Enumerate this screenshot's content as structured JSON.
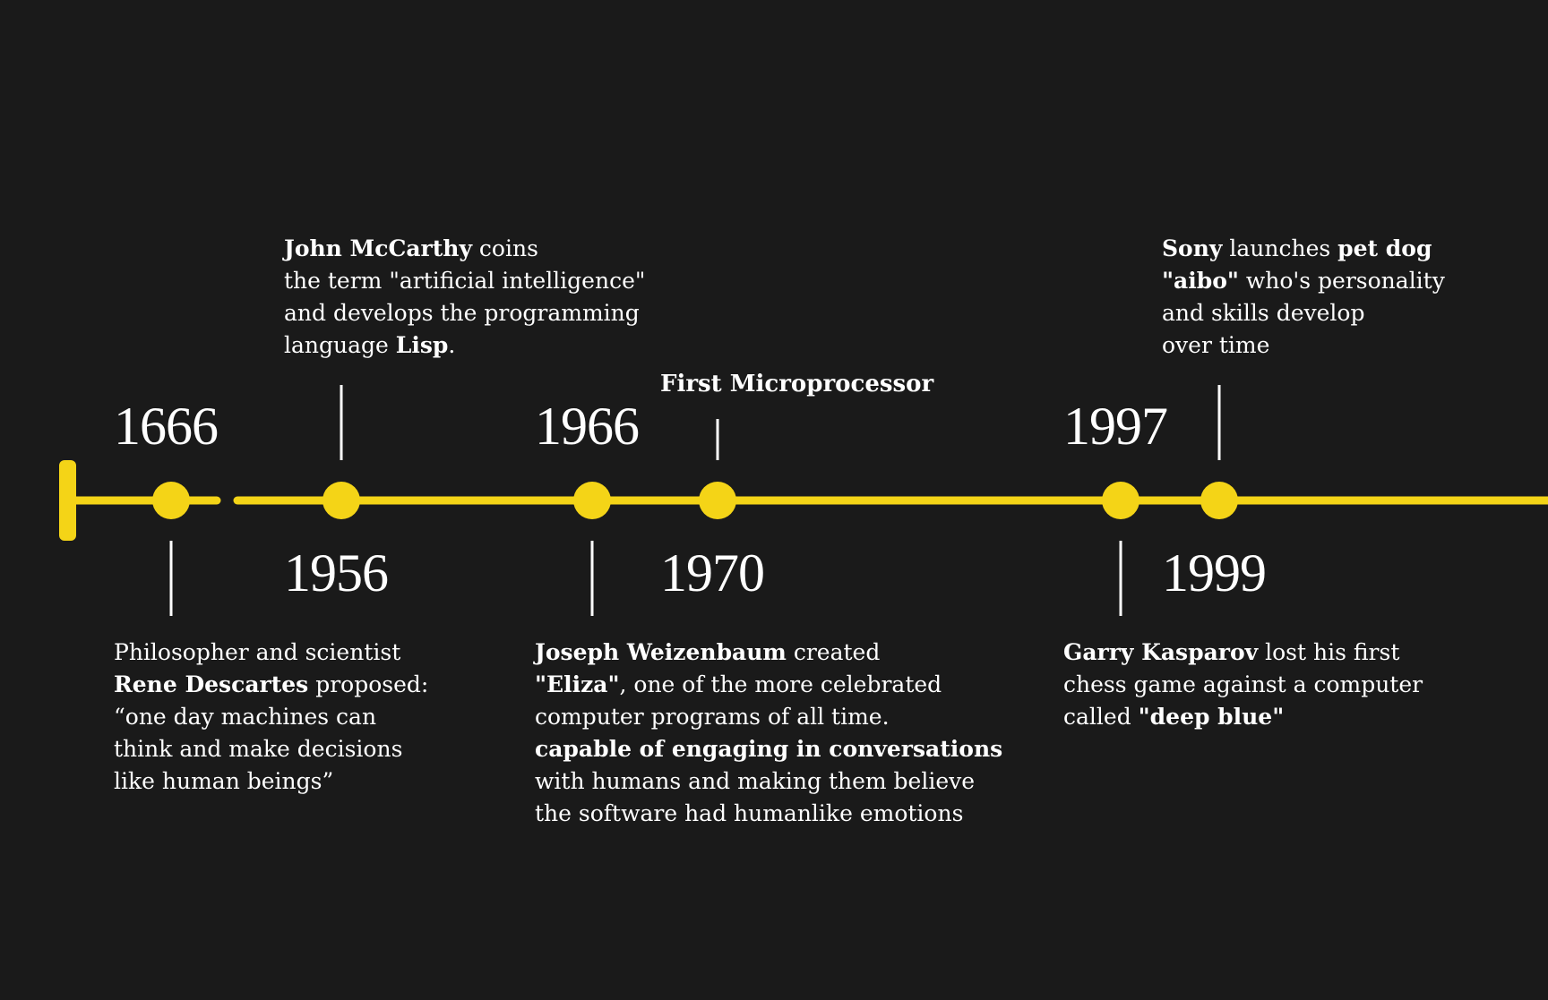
{
  "theme": {
    "background": "#1a1a1a",
    "accent": "#f4d417",
    "text": "#ffffff",
    "connector": "#ffffff"
  },
  "events": [
    {
      "id": "1666",
      "year": "1666",
      "lines": [
        [
          {
            "text": "Philosopher and scientist",
            "bold": false
          }
        ],
        [
          {
            "text": "Rene Descartes",
            "bold": true
          },
          {
            "text": " proposed:",
            "bold": false
          }
        ],
        [
          {
            "text": "“one day machines can",
            "bold": false
          }
        ],
        [
          {
            "text": "think and make decisions",
            "bold": false
          }
        ],
        [
          {
            "text": "like human beings”",
            "bold": false
          }
        ]
      ]
    },
    {
      "id": "1956",
      "year": "1956",
      "lines": [
        [
          {
            "text": "John McCarthy",
            "bold": true
          },
          {
            "text": " coins",
            "bold": false
          }
        ],
        [
          {
            "text": "the term \"artificial intelligence\"",
            "bold": false
          }
        ],
        [
          {
            "text": "and develops the programming",
            "bold": false
          }
        ],
        [
          {
            "text": "language ",
            "bold": false
          },
          {
            "text": "Lisp",
            "bold": true
          },
          {
            "text": ".",
            "bold": false
          }
        ]
      ]
    },
    {
      "id": "1966",
      "year": "1966",
      "lines": [
        [
          {
            "text": "Joseph Weizenbaum",
            "bold": true
          },
          {
            "text": " created",
            "bold": false
          }
        ],
        [
          {
            "text": "\"Eliza\"",
            "bold": true
          },
          {
            "text": ", one of the more celebrated",
            "bold": false
          }
        ],
        [
          {
            "text": "computer programs of all time.",
            "bold": false
          }
        ],
        [
          {
            "text": "capable of engaging in conversations",
            "bold": true
          }
        ],
        [
          {
            "text": "with humans and making them believe",
            "bold": false
          }
        ],
        [
          {
            "text": "the software had humanlike emotions",
            "bold": false
          }
        ]
      ]
    },
    {
      "id": "1970",
      "year": "1970",
      "label": "First Microprocessor"
    },
    {
      "id": "1997",
      "year": "1997",
      "lines": [
        [
          {
            "text": "Garry Kasparov",
            "bold": true
          },
          {
            "text": " lost his first",
            "bold": false
          }
        ],
        [
          {
            "text": "chess game against a computer",
            "bold": false
          }
        ],
        [
          {
            "text": "called ",
            "bold": false
          },
          {
            "text": "\"deep blue\"",
            "bold": true
          }
        ]
      ]
    },
    {
      "id": "1999",
      "year": "1999",
      "lines": [
        [
          {
            "text": "Sony",
            "bold": true
          },
          {
            "text": " launches ",
            "bold": false
          },
          {
            "text": "pet dog",
            "bold": true
          }
        ],
        [
          {
            "text": "\"aibo\"",
            "bold": true
          },
          {
            "text": " who's personality",
            "bold": false
          }
        ],
        [
          {
            "text": "and skills develop",
            "bold": false
          }
        ],
        [
          {
            "text": "over time",
            "bold": false
          }
        ]
      ]
    }
  ]
}
